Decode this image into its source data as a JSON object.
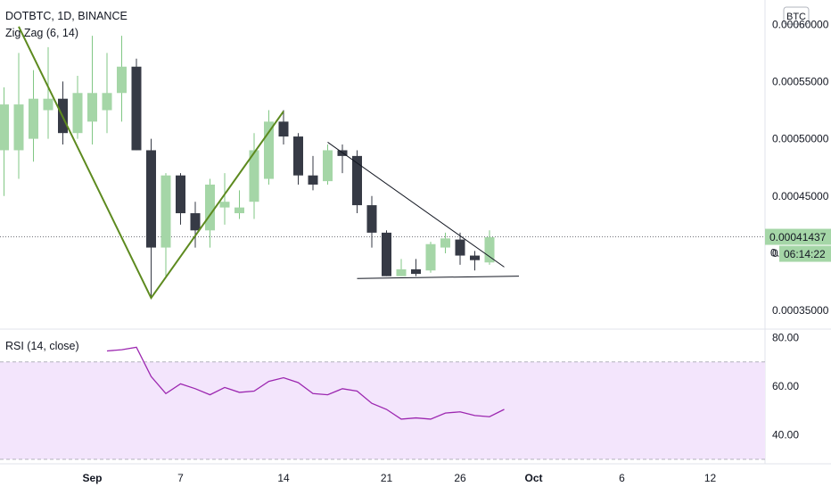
{
  "header": {
    "symbol_line": "DOTBTC, 1D, BINANCE",
    "indicator": "Zig Zag (6, 14)",
    "currency_badge": "BTC"
  },
  "colors": {
    "up": "#a5d6a7",
    "up_border": "#81c784",
    "down": "#363a45",
    "zigzag": "#5d8a1f",
    "trend": "#131722",
    "rsi_line": "#9c27b0",
    "rsi_band": "#f3e5fc",
    "price_label_bg": "#a5d6a7"
  },
  "chart_data": [
    {
      "type": "candlestick",
      "title": "",
      "ylim": [
        0.00034,
        0.000615
      ],
      "y_ticks": [
        "0.00060000",
        "0.00055000",
        "0.00050000",
        "0.00045000",
        "0.00040000",
        "0.00035000"
      ],
      "y_tick_values": [
        0.0006,
        0.00055,
        0.0005,
        0.00045,
        0.0004,
        0.00035
      ],
      "x_ticks": [
        "Sep",
        "7",
        "14",
        "21",
        "26",
        "Oct",
        "6",
        "12"
      ],
      "x_tick_index": [
        6,
        12,
        19,
        26,
        31,
        36,
        42,
        48
      ],
      "first_index": 0,
      "current_price": "0.00041437",
      "current_price_value": 0.00041437,
      "countdown": "06:14:22",
      "countdown_prefix": "0.",
      "candles": [
        {
          "o": 0.00049,
          "h": 0.000545,
          "l": 0.00045,
          "c": 0.00053
        },
        {
          "o": 0.00049,
          "h": 0.000575,
          "l": 0.000465,
          "c": 0.00053
        },
        {
          "o": 0.0005,
          "h": 0.00056,
          "l": 0.00048,
          "c": 0.000535
        },
        {
          "o": 0.000525,
          "h": 0.00058,
          "l": 0.0005,
          "c": 0.000535
        },
        {
          "o": 0.000535,
          "h": 0.00055,
          "l": 0.000495,
          "c": 0.000505
        },
        {
          "o": 0.000505,
          "h": 0.000555,
          "l": 0.0005,
          "c": 0.00054
        },
        {
          "o": 0.000515,
          "h": 0.00059,
          "l": 0.000495,
          "c": 0.00054
        },
        {
          "o": 0.000525,
          "h": 0.000575,
          "l": 0.000505,
          "c": 0.00054
        },
        {
          "o": 0.00054,
          "h": 0.00059,
          "l": 0.000515,
          "c": 0.000563
        },
        {
          "o": 0.000563,
          "h": 0.00057,
          "l": 0.00049,
          "c": 0.00049
        },
        {
          "o": 0.00049,
          "h": 0.0005,
          "l": 0.000362,
          "c": 0.000405
        },
        {
          "o": 0.000405,
          "h": 0.00047,
          "l": 0.00038,
          "c": 0.000468
        },
        {
          "o": 0.000468,
          "h": 0.00047,
          "l": 0.000425,
          "c": 0.000435
        },
        {
          "o": 0.000435,
          "h": 0.000445,
          "l": 0.000405,
          "c": 0.00042
        },
        {
          "o": 0.00042,
          "h": 0.000465,
          "l": 0.000405,
          "c": 0.00046
        },
        {
          "o": 0.00044,
          "h": 0.00047,
          "l": 0.000425,
          "c": 0.000445
        },
        {
          "o": 0.000435,
          "h": 0.000455,
          "l": 0.00043,
          "c": 0.00044
        },
        {
          "o": 0.000445,
          "h": 0.000505,
          "l": 0.00043,
          "c": 0.00049
        },
        {
          "o": 0.000465,
          "h": 0.000525,
          "l": 0.00046,
          "c": 0.000515
        },
        {
          "o": 0.000515,
          "h": 0.000525,
          "l": 0.000495,
          "c": 0.000502
        },
        {
          "o": 0.000502,
          "h": 0.000505,
          "l": 0.00046,
          "c": 0.000468
        },
        {
          "o": 0.000468,
          "h": 0.000485,
          "l": 0.000455,
          "c": 0.00046
        },
        {
          "o": 0.000463,
          "h": 0.000495,
          "l": 0.00046,
          "c": 0.00049
        },
        {
          "o": 0.00049,
          "h": 0.000495,
          "l": 0.00047,
          "c": 0.000485
        },
        {
          "o": 0.000485,
          "h": 0.00049,
          "l": 0.000435,
          "c": 0.000442
        },
        {
          "o": 0.000442,
          "h": 0.00045,
          "l": 0.000405,
          "c": 0.000418
        },
        {
          "o": 0.000418,
          "h": 0.00042,
          "l": 0.00038,
          "c": 0.00038
        },
        {
          "o": 0.00038,
          "h": 0.000395,
          "l": 0.00038,
          "c": 0.000386
        },
        {
          "o": 0.000386,
          "h": 0.000395,
          "l": 0.00038,
          "c": 0.000382
        },
        {
          "o": 0.000385,
          "h": 0.00041,
          "l": 0.000383,
          "c": 0.000408
        },
        {
          "o": 0.000405,
          "h": 0.000418,
          "l": 0.0004,
          "c": 0.000413
        },
        {
          "o": 0.000412,
          "h": 0.000418,
          "l": 0.00039,
          "c": 0.000398
        },
        {
          "o": 0.000398,
          "h": 0.000402,
          "l": 0.000385,
          "c": 0.000394
        },
        {
          "o": 0.000392,
          "h": 0.00042,
          "l": 0.00039,
          "c": 0.000414
        }
      ],
      "zigzag_points": [
        {
          "i": 1,
          "v": 0.000598
        },
        {
          "i": 10,
          "v": 0.000361
        },
        {
          "i": 19,
          "v": 0.000524
        }
      ],
      "trend_lines": [
        {
          "i1": 22,
          "v1": 0.000497,
          "i2": 34,
          "v2": 0.000388
        },
        {
          "i1": 24,
          "v1": 0.000378,
          "i2": 35,
          "v2": 0.00038
        }
      ]
    },
    {
      "type": "line",
      "title": "RSI (14, close)",
      "ylim": [
        30,
        82
      ],
      "y_ticks": [
        "80.00",
        "60.00",
        "40.00"
      ],
      "y_tick_values": [
        80,
        60,
        40
      ],
      "band": [
        30,
        70
      ],
      "series": [
        {
          "values": [
            74.5,
            75,
            76,
            64,
            57,
            61,
            59,
            56.5,
            59.5,
            57.5,
            58,
            62,
            63.5,
            61.5,
            57,
            56.5,
            59,
            58,
            53,
            50.5,
            46.5,
            47,
            46.5,
            49,
            49.5,
            48,
            47.5,
            50.5
          ]
        }
      ],
      "first_index": 7
    }
  ]
}
